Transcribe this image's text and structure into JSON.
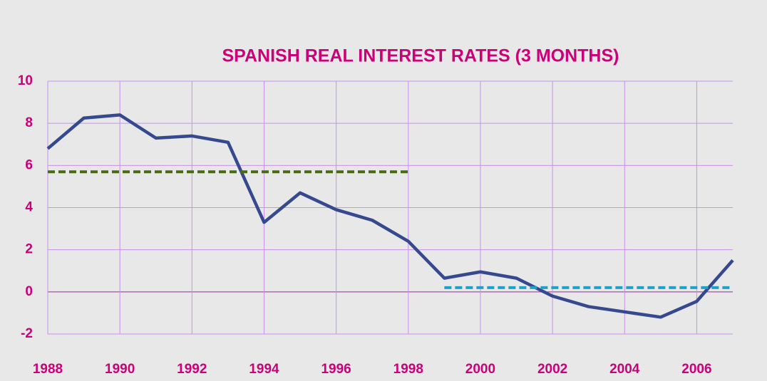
{
  "chart_data": {
    "type": "line",
    "title": "SPANISH REAL INTEREST RATES (3 MONTHS)",
    "x": [
      1988,
      1989,
      1990,
      1991,
      1992,
      1993,
      1994,
      1995,
      1996,
      1997,
      1998,
      1999,
      2000,
      2001,
      2002,
      2003,
      2004,
      2005,
      2006,
      2007
    ],
    "series": [
      {
        "color": "#36498e",
        "dash": false,
        "values": [
          6.8,
          8.25,
          8.4,
          7.3,
          7.4,
          7.1,
          3.3,
          4.7,
          3.9,
          3.4,
          2.4,
          0.65,
          0.95,
          0.65,
          -0.2,
          -0.7,
          -0.95,
          -1.2,
          -0.45,
          1.5
        ]
      },
      {
        "color": "#4a6a12",
        "dash": true,
        "values": [
          5.7,
          5.7,
          5.7,
          5.7,
          5.7,
          5.7,
          5.7,
          5.7,
          5.7,
          5.7,
          5.7,
          null,
          null,
          null,
          null,
          null,
          null,
          null,
          null,
          null
        ]
      },
      {
        "color": "#1fa0c8",
        "dash": true,
        "values": [
          null,
          null,
          null,
          null,
          null,
          null,
          null,
          null,
          null,
          null,
          null,
          0.2,
          0.2,
          0.2,
          0.2,
          0.2,
          0.2,
          0.2,
          0.2,
          0.2
        ]
      }
    ],
    "xlim": [
      1988,
      2007
    ],
    "xticks": [
      1988,
      1990,
      1992,
      1994,
      1996,
      1998,
      2000,
      2002,
      2004,
      2006
    ],
    "ylim": [
      -2,
      10
    ],
    "yticks": [
      -2,
      0,
      2,
      4,
      6,
      8,
      10
    ],
    "grid": true
  }
}
